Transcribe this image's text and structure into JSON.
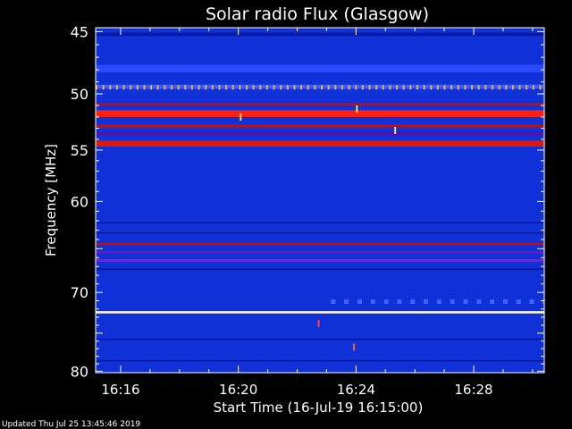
{
  "chart_data": {
    "type": "heatmap",
    "title": "Solar radio Flux (Glasgow)",
    "xlabel": "Start Time (16-Jul-19 16:15:00)",
    "ylabel": "Frequency [MHz]",
    "footer": "Updated Thu Jul 25 13:45:46 2019",
    "x_ticks": [
      {
        "minute": 16,
        "label": "16:16"
      },
      {
        "minute": 20,
        "label": "16:20"
      },
      {
        "minute": 24,
        "label": "16:24"
      },
      {
        "minute": 28,
        "label": "16:28"
      }
    ],
    "xlim_minutes": [
      15.15,
      30.4
    ],
    "y_ticks": [
      {
        "value": 45,
        "label": "45"
      },
      {
        "value": 50,
        "label": "50"
      },
      {
        "value": 55,
        "label": "55"
      },
      {
        "value": 60,
        "label": "60"
      },
      {
        "value": 70,
        "label": "70"
      },
      {
        "value": 80,
        "label": "80"
      }
    ],
    "y_scale": "log",
    "ylim_mhz": [
      44.7,
      80.2
    ],
    "background_color": "#1030d8",
    "bands": [
      {
        "mhz": 45.2,
        "width": 0.25,
        "color": "#0a1a9c"
      },
      {
        "mhz": 47.9,
        "width": 0.6,
        "color": "#2a4cff"
      },
      {
        "mhz": 49.4,
        "width": 0.35,
        "color": "#3a5cff"
      },
      {
        "mhz": 50.9,
        "width": 0.22,
        "color": "#c01008"
      },
      {
        "mhz": 51.7,
        "width": 0.6,
        "color": "#ff2010"
      },
      {
        "mhz": 52.8,
        "width": 0.25,
        "color": "#c00e06"
      },
      {
        "mhz": 53.5,
        "width": 0.22,
        "color": "#5a10a0"
      },
      {
        "mhz": 54.4,
        "width": 0.55,
        "color": "#e01808"
      },
      {
        "mhz": 62.2,
        "width": 0.15,
        "color": "#0a1a9c"
      },
      {
        "mhz": 63.3,
        "width": 0.15,
        "color": "#0a1a9c"
      },
      {
        "mhz": 64.5,
        "width": 0.22,
        "color": "#c01010"
      },
      {
        "mhz": 65.4,
        "width": 0.22,
        "color": "#7018c0"
      },
      {
        "mhz": 66.3,
        "width": 0.28,
        "color": "#6a2ad8"
      },
      {
        "mhz": 67.3,
        "width": 0.2,
        "color": "#0a1a9c"
      },
      {
        "mhz": 72.4,
        "width": 0.28,
        "color": "#fff6c0"
      },
      {
        "mhz": 75.8,
        "width": 0.2,
        "color": "#0a1a9c"
      },
      {
        "mhz": 78.6,
        "width": 0.2,
        "color": "#0a1a9c"
      }
    ],
    "pulse_rows": [
      {
        "mhz": 49.45,
        "start_min": 15.15,
        "end_min": 30.4,
        "period_min": 0.232,
        "color": "#ffb020"
      },
      {
        "mhz": 71.1,
        "start_min": 23.15,
        "end_min": 30.4,
        "period_min": 0.45,
        "color": "#3a66ff"
      }
    ],
    "streaks": [
      {
        "minute": 20.05,
        "mhz": 52.0,
        "color": "#ffe040"
      },
      {
        "minute": 24.0,
        "mhz": 51.3,
        "color": "#ffe040"
      },
      {
        "minute": 25.3,
        "mhz": 53.2,
        "color": "#ffd0a0"
      },
      {
        "minute": 23.9,
        "mhz": 76.8,
        "color": "#ff6020"
      },
      {
        "minute": 22.7,
        "mhz": 73.8,
        "color": "#ff4040"
      }
    ]
  }
}
